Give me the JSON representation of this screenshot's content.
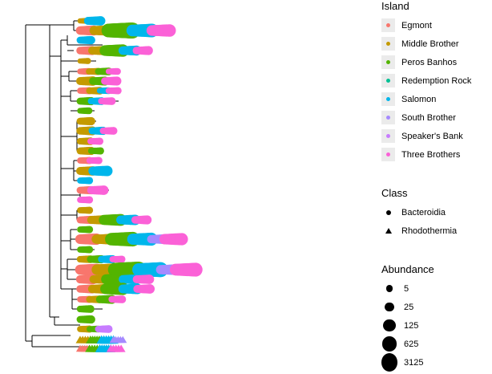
{
  "chart_data": {
    "type": "scatter",
    "description_free": true,
    "legends": {
      "island": {
        "title": "Island",
        "items": [
          {
            "label": "Egmont",
            "color": "#F8766D"
          },
          {
            "label": "Middle Brother",
            "color": "#C49A00"
          },
          {
            "label": "Peros Banhos",
            "color": "#53B400"
          },
          {
            "label": "Redemption Rock",
            "color": "#00C094"
          },
          {
            "label": "Salomon",
            "color": "#00B6EB"
          },
          {
            "label": "South Brother",
            "color": "#A58AFF"
          },
          {
            "label": "Speaker's Bank",
            "color": "#C77CFF"
          },
          {
            "label": "Three Brothers",
            "color": "#FB61D7"
          }
        ]
      },
      "class": {
        "title": "Class",
        "items": [
          {
            "label": "Bacteroidia",
            "shape": "circle"
          },
          {
            "label": "Rhodothermia",
            "shape": "triangle"
          }
        ]
      },
      "abundance": {
        "title": "Abundance",
        "items": [
          {
            "label": "5",
            "value": 5
          },
          {
            "label": "25",
            "value": 25
          },
          {
            "label": "125",
            "value": 125
          },
          {
            "label": "625",
            "value": 625
          },
          {
            "label": "3125",
            "value": 3125
          }
        ]
      }
    },
    "tips": [
      {
        "row": 1,
        "class": "Bacteroidia",
        "points": [
          [
            "Middle Brother",
            5
          ],
          [
            "Salomon",
            40
          ]
        ]
      },
      {
        "row": 2,
        "class": "Bacteroidia",
        "points": [
          [
            "Egmont",
            60
          ],
          [
            "Middle Brother",
            80
          ],
          [
            "Peros Banhos",
            3125
          ],
          [
            "Salomon",
            600
          ],
          [
            "Three Brothers",
            300
          ]
        ]
      },
      {
        "row": 3,
        "class": "Bacteroidia",
        "points": [
          [
            "Salomon",
            20
          ]
        ]
      },
      {
        "row": 4,
        "class": "Bacteroidia",
        "points": [
          [
            "Egmont",
            30
          ],
          [
            "Middle Brother",
            40
          ],
          [
            "Peros Banhos",
            300
          ],
          [
            "Salomon",
            60
          ],
          [
            "Three Brothers",
            30
          ]
        ]
      },
      {
        "row": 5,
        "class": "Bacteroidia",
        "points": [
          [
            "Middle Brother",
            5
          ]
        ]
      },
      {
        "row": 6,
        "class": "Bacteroidia",
        "points": [
          [
            "Egmont",
            8
          ],
          [
            "Middle Brother",
            10
          ],
          [
            "Peros Banhos",
            15
          ],
          [
            "Three Brothers",
            8
          ]
        ]
      },
      {
        "row": 7,
        "class": "Bacteroidia",
        "points": [
          [
            "Middle Brother",
            40
          ],
          [
            "Peros Banhos",
            30
          ],
          [
            "Three Brothers",
            30
          ]
        ]
      },
      {
        "row": 8,
        "class": "Bacteroidia",
        "points": [
          [
            "Egmont",
            10
          ],
          [
            "Middle Brother",
            15
          ],
          [
            "Salomon",
            8
          ],
          [
            "Three Brothers",
            10
          ]
        ]
      },
      {
        "row": 9,
        "class": "Bacteroidia",
        "points": [
          [
            "Peros Banhos",
            20
          ],
          [
            "Salomon",
            15
          ],
          [
            "Three Brothers",
            15
          ]
        ]
      },
      {
        "row": 10,
        "class": "Bacteroidia",
        "points": [
          [
            "Peros Banhos",
            8
          ]
        ]
      },
      {
        "row": 11,
        "class": "Bacteroidia",
        "points": [
          [
            "Middle Brother",
            20
          ]
        ]
      },
      {
        "row": 12,
        "class": "Bacteroidia",
        "points": [
          [
            "Middle Brother",
            30
          ],
          [
            "Salomon",
            20
          ],
          [
            "Three Brothers",
            15
          ]
        ]
      },
      {
        "row": 13,
        "class": "Bacteroidia",
        "points": [
          [
            "Middle Brother",
            15
          ],
          [
            "Three Brothers",
            10
          ]
        ]
      },
      {
        "row": 14,
        "class": "Bacteroidia",
        "points": [
          [
            "Middle Brother",
            20
          ],
          [
            "Peros Banhos",
            10
          ]
        ]
      },
      {
        "row": 15,
        "class": "Bacteroidia",
        "points": [
          [
            "Egmont",
            10
          ],
          [
            "Three Brothers",
            10
          ]
        ]
      },
      {
        "row": 16,
        "class": "Bacteroidia",
        "points": [
          [
            "Middle Brother",
            40
          ],
          [
            "Salomon",
            80
          ]
        ]
      },
      {
        "row": 17,
        "class": "Bacteroidia",
        "points": [
          [
            "Salomon",
            10
          ]
        ]
      },
      {
        "row": 18,
        "class": "Bacteroidia",
        "points": [
          [
            "Egmont",
            20
          ],
          [
            "Three Brothers",
            40
          ]
        ]
      },
      {
        "row": 19,
        "class": "Bacteroidia",
        "points": [
          [
            "Three Brothers",
            10
          ]
        ]
      },
      {
        "row": 20,
        "class": "Bacteroidia",
        "points": [
          [
            "Middle Brother",
            10
          ]
        ]
      },
      {
        "row": 21,
        "class": "Bacteroidia",
        "points": [
          [
            "Egmont",
            20
          ],
          [
            "Middle Brother",
            40
          ],
          [
            "Peros Banhos",
            200
          ],
          [
            "Salomon",
            80
          ],
          [
            "Three Brothers",
            30
          ]
        ]
      },
      {
        "row": 22,
        "class": "Bacteroidia",
        "points": [
          [
            "Peros Banhos",
            10
          ]
        ]
      },
      {
        "row": 23,
        "class": "Bacteroidia",
        "points": [
          [
            "Egmont",
            150
          ],
          [
            "Middle Brother",
            100
          ],
          [
            "Peros Banhos",
            1200
          ],
          [
            "Salomon",
            400
          ],
          [
            "South Brother",
            50
          ],
          [
            "Three Brothers",
            250
          ]
        ]
      },
      {
        "row": 24,
        "class": "Bacteroidia",
        "points": [
          [
            "Peros Banhos",
            10
          ]
        ]
      },
      {
        "row": 25,
        "class": "Bacteroidia",
        "points": [
          [
            "Middle Brother",
            15
          ],
          [
            "Peros Banhos",
            20
          ],
          [
            "Salomon",
            20
          ],
          [
            "Three Brothers",
            10
          ]
        ]
      },
      {
        "row": 26,
        "class": "Bacteroidia",
        "points": [
          [
            "Egmont",
            200
          ],
          [
            "Middle Brother",
            300
          ],
          [
            "Peros Banhos",
            3125
          ],
          [
            "Salomon",
            1500
          ],
          [
            "South Brother",
            100
          ],
          [
            "Three Brothers",
            700
          ]
        ]
      },
      {
        "row": 27,
        "class": "Bacteroidia",
        "points": [
          [
            "Egmont",
            50
          ],
          [
            "Middle Brother",
            40
          ],
          [
            "Peros Banhos",
            200
          ],
          [
            "Salomon",
            60
          ],
          [
            "Three Brothers",
            40
          ]
        ]
      },
      {
        "row": 28,
        "class": "Bacteroidia",
        "points": [
          [
            "Egmont",
            30
          ],
          [
            "Middle Brother",
            50
          ],
          [
            "Peros Banhos",
            250
          ],
          [
            "Salomon",
            80
          ],
          [
            "Three Brothers",
            40
          ]
        ]
      },
      {
        "row": 29,
        "class": "Bacteroidia",
        "points": [
          [
            "Egmont",
            10
          ],
          [
            "Middle Brother",
            15
          ],
          [
            "Peros Banhos",
            30
          ],
          [
            "Three Brothers",
            15
          ]
        ]
      },
      {
        "row": 30,
        "class": "Bacteroidia",
        "points": [
          [
            "Peros Banhos",
            15
          ]
        ]
      },
      {
        "row": 31,
        "class": "Bacteroidia",
        "points": [
          [
            "Peros Banhos",
            20
          ]
        ]
      },
      {
        "row": 32,
        "class": "Bacteroidia",
        "points": [
          [
            "Middle Brother",
            10
          ],
          [
            "Peros Banhos",
            8
          ],
          [
            "Speaker's Bank",
            15
          ]
        ]
      },
      {
        "row": 33,
        "class": "Rhodothermia",
        "points": [
          [
            "Middle Brother",
            15
          ],
          [
            "Peros Banhos",
            20
          ],
          [
            "Salomon",
            30
          ],
          [
            "South Brother",
            10
          ]
        ]
      },
      {
        "row": 34,
        "class": "Rhodothermia",
        "points": [
          [
            "Egmont",
            10
          ],
          [
            "Peros Banhos",
            15
          ],
          [
            "Salomon",
            20
          ],
          [
            "Three Brothers",
            15
          ]
        ]
      }
    ]
  }
}
